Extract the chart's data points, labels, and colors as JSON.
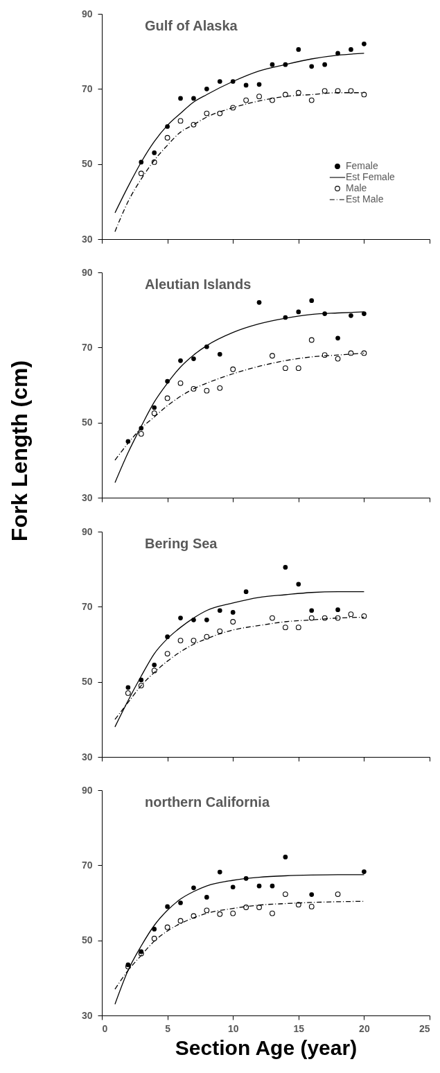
{
  "chart_data": [
    {
      "type": "scatter",
      "title": "Gulf of Alaska",
      "xlim": [
        0,
        25
      ],
      "xticks": [
        0,
        5,
        10,
        15,
        20,
        25
      ],
      "ylim": [
        30,
        90
      ],
      "yticks": [
        30,
        50,
        70,
        90
      ],
      "tick_labels": "y",
      "legend": "bottom right",
      "series": [
        {
          "name": "Female",
          "color": "#000000",
          "marker": "circle",
          "x": [
            3,
            4,
            5,
            6,
            7,
            8,
            9,
            10,
            11,
            12,
            13,
            14,
            15,
            16,
            17,
            18,
            19,
            20
          ],
          "values": [
            50.5,
            53,
            60,
            67.5,
            67.5,
            70,
            72,
            72,
            71,
            71.2,
            76.5,
            76.5,
            80.5,
            76,
            76.5,
            79.5,
            80.5,
            82
          ]
        },
        {
          "name": "Est Female",
          "type": "line",
          "color": "#000000",
          "marker": "none",
          "line_style": "solid",
          "x": [
            1,
            2,
            3,
            4,
            5,
            6,
            7,
            8,
            10,
            12,
            14,
            16,
            18,
            20
          ],
          "values": [
            37,
            44,
            50.5,
            56,
            60.3,
            63.5,
            66.5,
            68.5,
            72,
            74.8,
            76.5,
            78,
            79,
            79.5
          ]
        },
        {
          "name": "Male",
          "color": "#000000",
          "marker": "circle",
          "x": [
            3,
            4,
            5,
            6,
            7,
            8,
            9,
            10,
            11,
            12,
            13,
            14,
            15,
            16,
            17,
            18,
            19,
            20
          ],
          "values": [
            47.5,
            50.5,
            57,
            61.5,
            60.5,
            63.5,
            63.5,
            65,
            67,
            68,
            67,
            68.5,
            69,
            67,
            69.5,
            69.5,
            69.5,
            68.5
          ]
        },
        {
          "name": "Est Male",
          "type": "line",
          "color": "#000000",
          "marker": "none",
          "line_style": "dashed",
          "x": [
            1,
            2,
            3,
            4,
            5,
            6,
            7,
            8,
            10,
            12,
            14,
            16,
            18,
            20
          ],
          "values": [
            32,
            40,
            46,
            51,
            55,
            58.5,
            60.5,
            62.5,
            65,
            66.8,
            68,
            68.5,
            69,
            69
          ]
        }
      ]
    },
    {
      "type": "scatter",
      "title": "Aleutian Islands",
      "ylabel": "Fork Length (cm)",
      "xlim": [
        0,
        25
      ],
      "xticks": [
        0,
        5,
        10,
        15,
        20,
        25
      ],
      "ylim": [
        30,
        90
      ],
      "yticks": [
        30,
        50,
        70,
        90
      ],
      "tick_labels": "y",
      "series": [
        {
          "color": "#000000",
          "marker": "circle",
          "x": [
            2,
            3,
            4,
            5,
            6,
            7,
            8,
            9,
            12,
            14,
            15,
            16,
            17,
            18,
            19,
            20
          ],
          "values": [
            45,
            48.5,
            54,
            61,
            66.5,
            67,
            70.2,
            68.2,
            82,
            78,
            79.5,
            82.5,
            79,
            72.5,
            78.5,
            79
          ]
        },
        {
          "type": "line",
          "color": "#000000",
          "marker": "none",
          "line_style": "solid",
          "x": [
            1,
            2,
            3,
            4,
            5,
            6,
            7,
            8,
            10,
            12,
            14,
            16,
            18,
            20
          ],
          "values": [
            34,
            42,
            49,
            55.5,
            60.5,
            64.8,
            68,
            70.5,
            74,
            76.3,
            77.8,
            78.8,
            79.2,
            79.5
          ]
        },
        {
          "color": "#000000",
          "marker": "circle",
          "x": [
            3,
            4,
            5,
            6,
            7,
            8,
            9,
            10,
            13,
            14,
            15,
            16,
            17,
            18,
            19,
            20
          ],
          "values": [
            47,
            52.5,
            56.5,
            60.5,
            59,
            58.5,
            59.2,
            64.2,
            67.8,
            64.5,
            64.5,
            72,
            68,
            67,
            68.5,
            68.5
          ]
        },
        {
          "type": "line",
          "color": "#000000",
          "marker": "none",
          "line_style": "dashed",
          "x": [
            1,
            2,
            3,
            4,
            5,
            6,
            7,
            8,
            10,
            12,
            14,
            16,
            18,
            20
          ],
          "values": [
            40,
            44.5,
            48.5,
            51.5,
            54.5,
            57,
            59,
            60.5,
            63,
            65,
            66.5,
            67.5,
            68,
            68.5
          ]
        }
      ]
    },
    {
      "type": "scatter",
      "title": "Bering Sea",
      "xlim": [
        0,
        25
      ],
      "xticks": [
        0,
        5,
        10,
        15,
        20,
        25
      ],
      "ylim": [
        30,
        90
      ],
      "yticks": [
        30,
        50,
        70,
        90
      ],
      "tick_labels": "y",
      "series": [
        {
          "color": "#000000",
          "marker": "circle",
          "x": [
            2,
            3,
            4,
            5,
            6,
            7,
            8,
            9,
            10,
            11,
            14,
            15,
            16,
            18
          ],
          "values": [
            48.5,
            50.5,
            54.5,
            62,
            67,
            66.5,
            66.5,
            69,
            68.5,
            74,
            80.5,
            76,
            69,
            69.2
          ]
        },
        {
          "type": "line",
          "color": "#000000",
          "marker": "none",
          "line_style": "solid",
          "x": [
            1,
            2,
            3,
            4,
            5,
            6,
            7,
            8,
            10,
            12,
            14,
            16,
            18,
            20
          ],
          "values": [
            38,
            45,
            51.5,
            57.5,
            61.5,
            64.5,
            67,
            69,
            71,
            72.5,
            73.2,
            73.8,
            74,
            74
          ]
        },
        {
          "color": "#000000",
          "marker": "circle",
          "x": [
            2,
            3,
            4,
            5,
            6,
            7,
            8,
            9,
            10,
            13,
            14,
            15,
            16,
            17,
            18,
            19,
            20
          ],
          "values": [
            47,
            49,
            53,
            57.5,
            61,
            61,
            62,
            63.5,
            66,
            67,
            64.5,
            64.5,
            67,
            67,
            67,
            68,
            67.5
          ]
        },
        {
          "type": "line",
          "color": "#000000",
          "marker": "none",
          "line_style": "dashed",
          "x": [
            1,
            2,
            3,
            4,
            5,
            6,
            7,
            8,
            10,
            12,
            14,
            16,
            18,
            20
          ],
          "values": [
            40,
            44.5,
            49,
            52.5,
            55.5,
            58,
            60,
            61.5,
            63.8,
            65,
            66,
            66.5,
            67,
            67.2
          ]
        }
      ]
    },
    {
      "type": "scatter",
      "title": "northern California",
      "xlabel": "Section Age (year)",
      "xlim": [
        0,
        25
      ],
      "xticks": [
        0,
        5,
        10,
        15,
        20,
        25
      ],
      "ylim": [
        30,
        90
      ],
      "yticks": [
        30,
        50,
        70,
        90
      ],
      "series": [
        {
          "color": "#000000",
          "marker": "circle",
          "x": [
            2,
            3,
            4,
            5,
            6,
            7,
            8,
            9,
            10,
            11,
            12,
            13,
            14,
            16,
            20
          ],
          "values": [
            43.5,
            47,
            53,
            59,
            60,
            64,
            61.5,
            68.2,
            64.2,
            66.5,
            64.5,
            64.5,
            72.2,
            62.2,
            68.3
          ]
        },
        {
          "type": "line",
          "color": "#000000",
          "marker": "none",
          "line_style": "solid",
          "x": [
            1,
            2,
            3,
            4,
            5,
            6,
            7,
            8,
            10,
            12,
            14,
            16,
            18,
            20
          ],
          "values": [
            33,
            42,
            48.5,
            54,
            58,
            61,
            63,
            64.5,
            66,
            66.8,
            67.2,
            67.4,
            67.5,
            67.5
          ]
        },
        {
          "color": "#000000",
          "marker": "circle",
          "x": [
            2,
            3,
            4,
            5,
            6,
            7,
            8,
            9,
            10,
            11,
            12,
            13,
            14,
            15,
            16,
            18
          ],
          "values": [
            43,
            46.5,
            50.5,
            53.5,
            55.2,
            56.5,
            58,
            57,
            57.2,
            58.8,
            58.8,
            57.2,
            62.3,
            59.5,
            59,
            62.3
          ]
        },
        {
          "type": "line",
          "color": "#000000",
          "marker": "none",
          "line_style": "dashed",
          "x": [
            1,
            2,
            3,
            4,
            5,
            6,
            7,
            8,
            10,
            12,
            14,
            16,
            18,
            20
          ],
          "values": [
            37,
            42,
            46,
            49.8,
            52.5,
            54.5,
            56,
            57.2,
            58.5,
            59.4,
            59.8,
            60.1,
            60.3,
            60.4
          ]
        }
      ]
    }
  ]
}
